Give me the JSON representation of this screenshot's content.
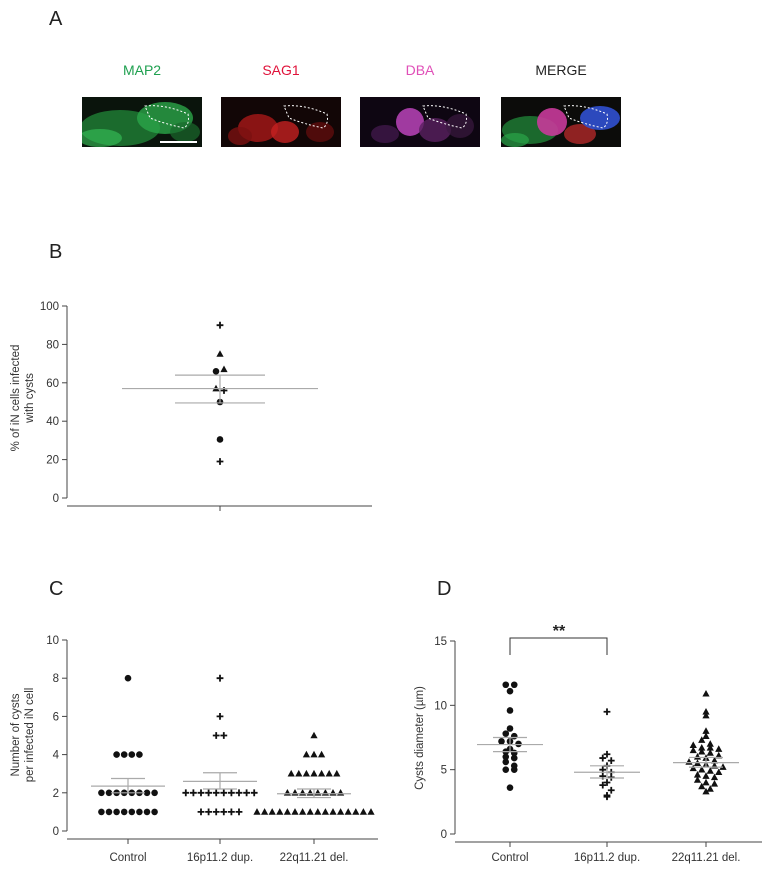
{
  "figure": {
    "panel_a": {
      "letter": "A",
      "channels": [
        {
          "label": "MAP2",
          "color": "#1fa050"
        },
        {
          "label": "SAG1",
          "color": "#e0123a"
        },
        {
          "label": "DBA",
          "color": "#e050b8"
        },
        {
          "label": "MERGE",
          "color": "#222222"
        }
      ]
    },
    "panel_b": {
      "letter": "B"
    },
    "panel_c": {
      "letter": "C"
    },
    "panel_d": {
      "letter": "D",
      "significance": "**"
    }
  },
  "chart_data": [
    {
      "panel": "B",
      "type": "scatter",
      "ylabel": [
        "% of iN cells infected",
        "with cysts"
      ],
      "ylim": [
        0,
        100
      ],
      "yticks": [
        0,
        20,
        40,
        60,
        80,
        100
      ],
      "categories": [
        ""
      ],
      "mean": [
        57
      ],
      "sem_low": [
        49.5
      ],
      "sem_high": [
        64
      ],
      "points": [
        {
          "cat": 0,
          "y": 90,
          "marker": "plus",
          "dx": 0
        },
        {
          "cat": 0,
          "y": 75,
          "marker": "triangle",
          "dx": 0
        },
        {
          "cat": 0,
          "y": 67,
          "marker": "triangle",
          "dx": 4
        },
        {
          "cat": 0,
          "y": 66,
          "marker": "circle",
          "dx": -4
        },
        {
          "cat": 0,
          "y": 57,
          "marker": "triangle",
          "dx": -4
        },
        {
          "cat": 0,
          "y": 56,
          "marker": "plus",
          "dx": 4
        },
        {
          "cat": 0,
          "y": 50,
          "marker": "circle",
          "dx": 0
        },
        {
          "cat": 0,
          "y": 30.5,
          "marker": "circle",
          "dx": 0
        },
        {
          "cat": 0,
          "y": 19,
          "marker": "plus",
          "dx": 0
        }
      ]
    },
    {
      "panel": "C",
      "type": "scatter",
      "ylabel": [
        "Number of cysts",
        "per infected iN cell"
      ],
      "ylim": [
        0,
        10
      ],
      "yticks": [
        0,
        2,
        4,
        6,
        8,
        10
      ],
      "categories": [
        "Control",
        "16p11.2 dup.",
        "22q11.21 del."
      ],
      "markers": [
        "circle",
        "plus",
        "triangle"
      ],
      "mean": [
        2.35,
        2.6,
        1.95
      ],
      "sem_low": [
        2.0,
        2.2,
        1.75
      ],
      "sem_high": [
        2.75,
        3.05,
        2.2
      ],
      "groups": [
        {
          "1": 8,
          "2": 8,
          "4": 4,
          "8": 1
        },
        {
          "1": 6,
          "2": 10,
          "5": 2,
          "6": 1,
          "8": 1
        },
        {
          "1": 16,
          "2": 8,
          "3": 7,
          "4": 3,
          "5": 1
        }
      ]
    },
    {
      "panel": "D",
      "type": "scatter",
      "ylabel": [
        "Cysts diameter (µm)"
      ],
      "ylim": [
        0,
        15
      ],
      "yticks": [
        0,
        5,
        10,
        15
      ],
      "categories": [
        "Control",
        "16p11.2 dup.",
        "22q11.21 del."
      ],
      "markers": [
        "circle",
        "plus",
        "triangle"
      ],
      "mean": [
        6.95,
        4.8,
        5.55
      ],
      "sem_low": [
        6.4,
        4.35,
        5.2
      ],
      "sem_high": [
        7.5,
        5.3,
        5.95
      ],
      "groups": [
        [
          11.6,
          11.6,
          11.1,
          9.6,
          8.2,
          7.8,
          7.6,
          7.2,
          7.2,
          7.0,
          6.6,
          6.4,
          6.3,
          6.0,
          5.9,
          5.6,
          5.3,
          5.0,
          5.0,
          3.6
        ],
        [
          9.5,
          6.2,
          5.9,
          5.7,
          5.3,
          5.0,
          4.8,
          4.5,
          4.4,
          4.0,
          3.8,
          3.4,
          3.0,
          2.9
        ],
        [
          10.9,
          9.5,
          9.2,
          8.0,
          7.6,
          7.3,
          7.0,
          6.9,
          6.7,
          6.7,
          6.6,
          6.5,
          6.4,
          6.3,
          6.1,
          6.0,
          5.9,
          5.7,
          5.6,
          5.5,
          5.4,
          5.3,
          5.2,
          5.1,
          5.0,
          4.9,
          4.8,
          4.6,
          4.5,
          4.4,
          4.2,
          4.0,
          3.9,
          3.7,
          3.5,
          3.3
        ]
      ]
    }
  ]
}
